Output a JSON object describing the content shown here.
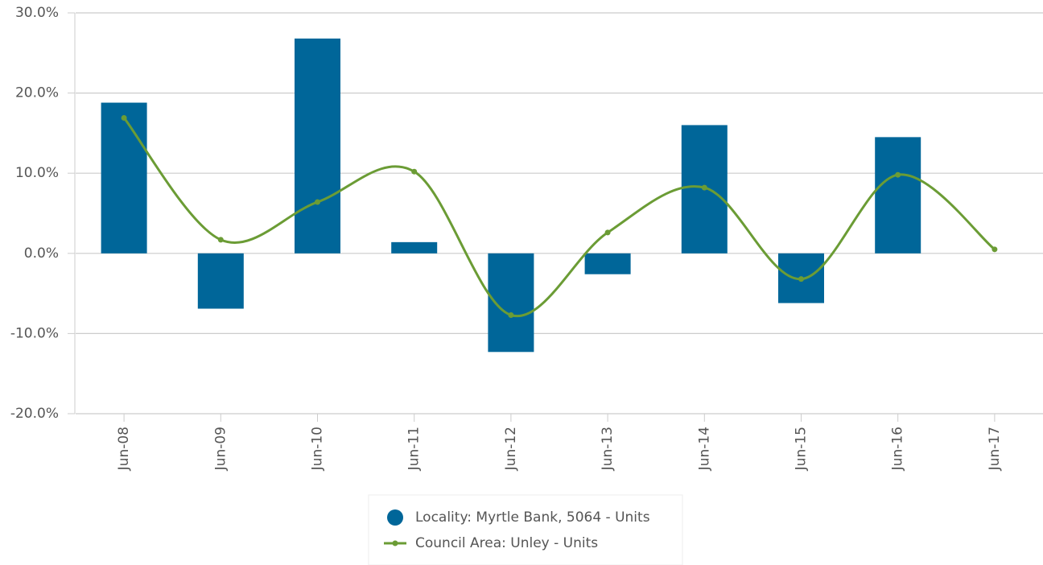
{
  "chart_data": {
    "type": "bar_line",
    "categories": [
      "Jun-08",
      "Jun-09",
      "Jun-10",
      "Jun-11",
      "Jun-12",
      "Jun-13",
      "Jun-14",
      "Jun-15",
      "Jun-16",
      "Jun-17"
    ],
    "series": [
      {
        "name": "Locality: Myrtle Bank, 5064 - Units",
        "type": "bar",
        "color": "#006699",
        "values": [
          18.8,
          -6.9,
          26.8,
          1.4,
          -12.3,
          -2.6,
          16.0,
          -6.2,
          14.5,
          null
        ]
      },
      {
        "name": "Council Area: Unley - Units",
        "type": "line",
        "color": "#6b9c35",
        "values": [
          16.9,
          1.7,
          6.4,
          10.2,
          -7.7,
          2.6,
          8.2,
          -3.2,
          9.8,
          0.5
        ]
      }
    ],
    "ylim": [
      -20,
      30
    ],
    "yticks": [
      {
        "value": -20,
        "label": "-20.0%"
      },
      {
        "value": -10,
        "label": "-10.0%"
      },
      {
        "value": 0,
        "label": "0.0%"
      },
      {
        "value": 10,
        "label": "10.0%"
      },
      {
        "value": 20,
        "label": "20.0%"
      },
      {
        "value": 30,
        "label": "30.0%"
      }
    ],
    "grid": true,
    "legend": "bottom"
  }
}
